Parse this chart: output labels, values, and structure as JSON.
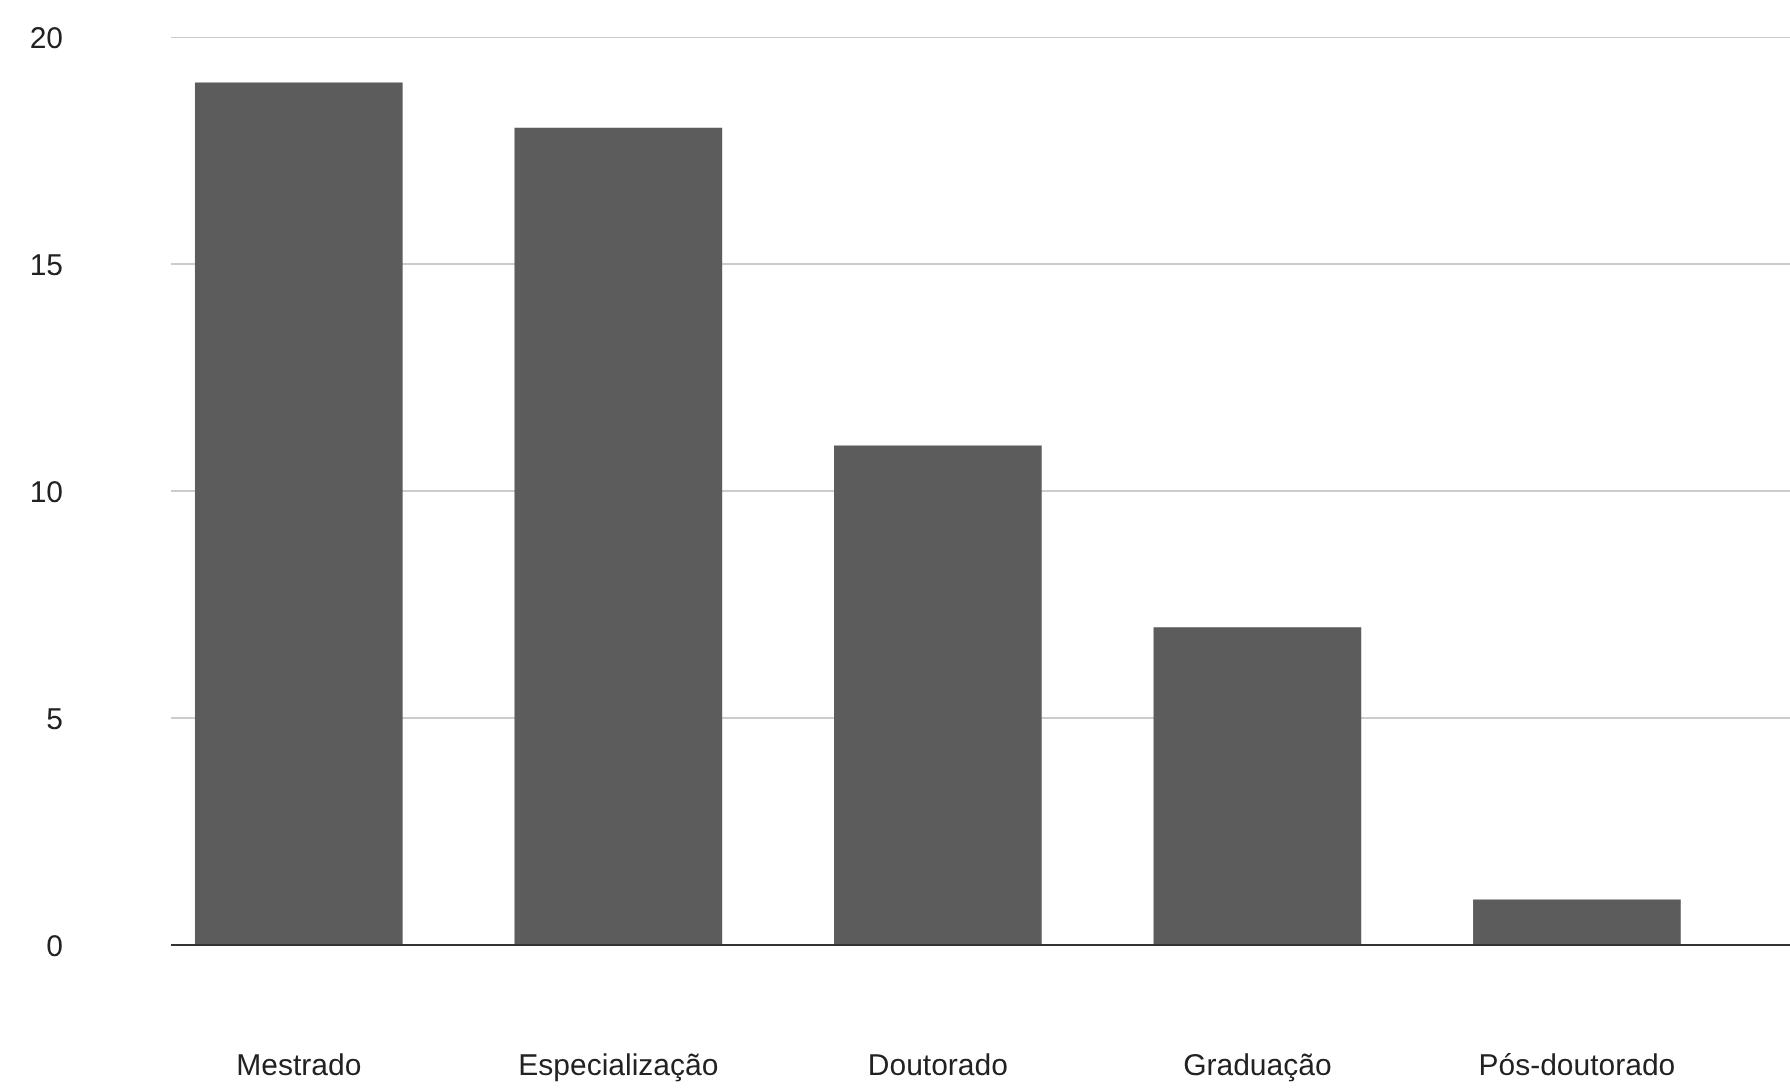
{
  "chart_data": {
    "type": "bar",
    "categories": [
      "Mestrado",
      "Especialização",
      "Doutorado",
      "Graduação",
      "Pós-doutorado"
    ],
    "values": [
      19,
      18,
      11,
      7,
      1
    ],
    "color": "#5c5c5c",
    "ylim": [
      0,
      20
    ],
    "yticks": [
      0,
      5,
      10,
      15,
      20
    ],
    "grid": "y"
  }
}
